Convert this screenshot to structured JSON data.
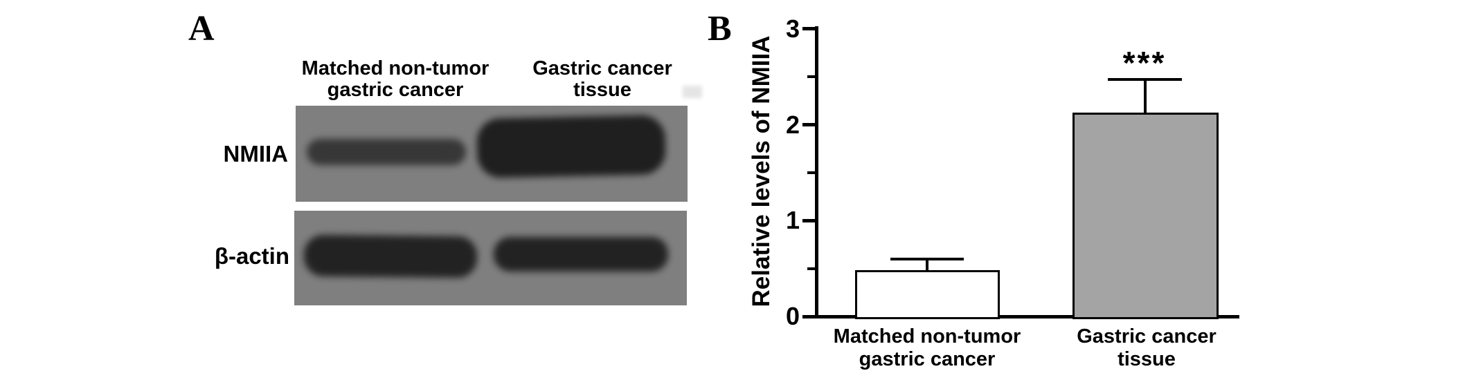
{
  "panel_a": {
    "label": "A",
    "lane_headers": [
      {
        "line1": "Matched non-tumor",
        "line2": "gastric cancer"
      },
      {
        "line1": "Gastric cancer",
        "line2": "tissue"
      }
    ],
    "row_labels": [
      "NMIIA",
      "β-actin"
    ],
    "blot": {
      "background_color": "#7f7f7f",
      "band_color": "#1c1c1c",
      "rows": [
        {
          "protein": "NMIIA",
          "bands": [
            {
              "lane": "Matched non-tumor gastric cancer",
              "intensity": "weak"
            },
            {
              "lane": "Gastric cancer tissue",
              "intensity": "strong"
            }
          ]
        },
        {
          "protein": "β-actin",
          "bands": [
            {
              "lane": "Matched non-tumor gastric cancer",
              "intensity": "strong"
            },
            {
              "lane": "Gastric cancer tissue",
              "intensity": "strong"
            }
          ]
        }
      ]
    }
  },
  "panel_b": {
    "label": "B"
  },
  "chart_data": {
    "type": "bar",
    "title": "",
    "ylabel": "Relative levels of NMIIA",
    "xlabel": "",
    "categories": [
      "Matched non-tumor gastric cancer",
      "Gastric cancer tissue"
    ],
    "values": [
      0.48,
      2.13
    ],
    "errors_upper": [
      0.13,
      0.36
    ],
    "ylim": [
      0,
      3
    ],
    "y_ticks": [
      0,
      1,
      2,
      3
    ],
    "y_tick_labels": [
      "0",
      "1",
      "2",
      "3"
    ],
    "y_minor_ticks": [
      0.5,
      1.5,
      2.5
    ],
    "x_tick_labels": [
      {
        "line1": "Matched non-tumor",
        "line2": "gastric cancer"
      },
      {
        "line1": "Gastric cancer",
        "line2": "tissue"
      }
    ],
    "significance": {
      "label": "***",
      "category": "Gastric cancer tissue"
    },
    "bar_fill_colors": [
      "#ffffff",
      "#a4a4a4"
    ],
    "bar_edge_color": "#000000",
    "axis_color": "#000000",
    "grid": false,
    "legend": false
  }
}
